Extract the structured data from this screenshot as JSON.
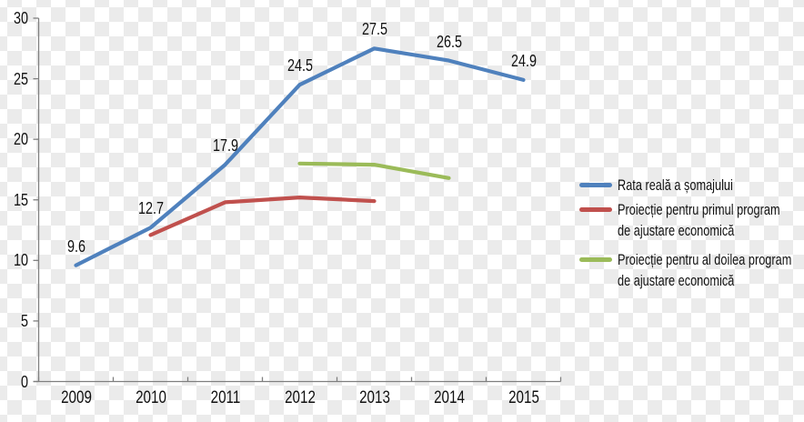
{
  "chart_data": {
    "type": "line",
    "title": "",
    "xlabel": "",
    "ylabel": "",
    "categories": [
      "2009",
      "2010",
      "2011",
      "2012",
      "2013",
      "2014",
      "2015"
    ],
    "ylim": [
      0,
      30
    ],
    "yticks": [
      0,
      5,
      10,
      15,
      20,
      25,
      30
    ],
    "grid": false,
    "legend_position": "right",
    "series": [
      {
        "name": "Rata reală a șomajului",
        "color": "#4F81BD",
        "start_index": 0,
        "values": [
          9.6,
          12.7,
          17.9,
          24.5,
          27.5,
          26.5,
          24.9
        ],
        "data_labels": [
          "9.6",
          "12.7",
          "17.9",
          "24.5",
          "27.5",
          "26.5",
          "24.9"
        ]
      },
      {
        "name": "Proiecție pentru primul program de ajustare economică",
        "color": "#C0504D",
        "start_index": 1,
        "values": [
          12.1,
          14.8,
          15.2,
          14.9
        ],
        "data_labels": null
      },
      {
        "name": "Proiecție pentru al doilea program de ajustare economică",
        "color": "#9BBB59",
        "start_index": 3,
        "values": [
          18.0,
          17.9,
          16.8
        ],
        "data_labels": null
      }
    ],
    "legend": {
      "items": [
        {
          "color": "#4F81BD",
          "lines": [
            "Rata reală a șomajului",
            ""
          ]
        },
        {
          "color": "#C0504D",
          "lines": [
            "Proiecție pentru primul program",
            "de ajustare economică"
          ]
        },
        {
          "color": "#9BBB59",
          "lines": [
            "Proiecție pentru al doilea program",
            "de ajustare economică"
          ]
        }
      ]
    }
  },
  "colors": {
    "axis": "#7F7F7F",
    "text": "#111111",
    "series_blue": "#4F81BD",
    "series_red": "#C0504D",
    "series_green": "#9BBB59",
    "checker_light": "#FFFFFF",
    "checker_dark": "#EBEBEB"
  }
}
